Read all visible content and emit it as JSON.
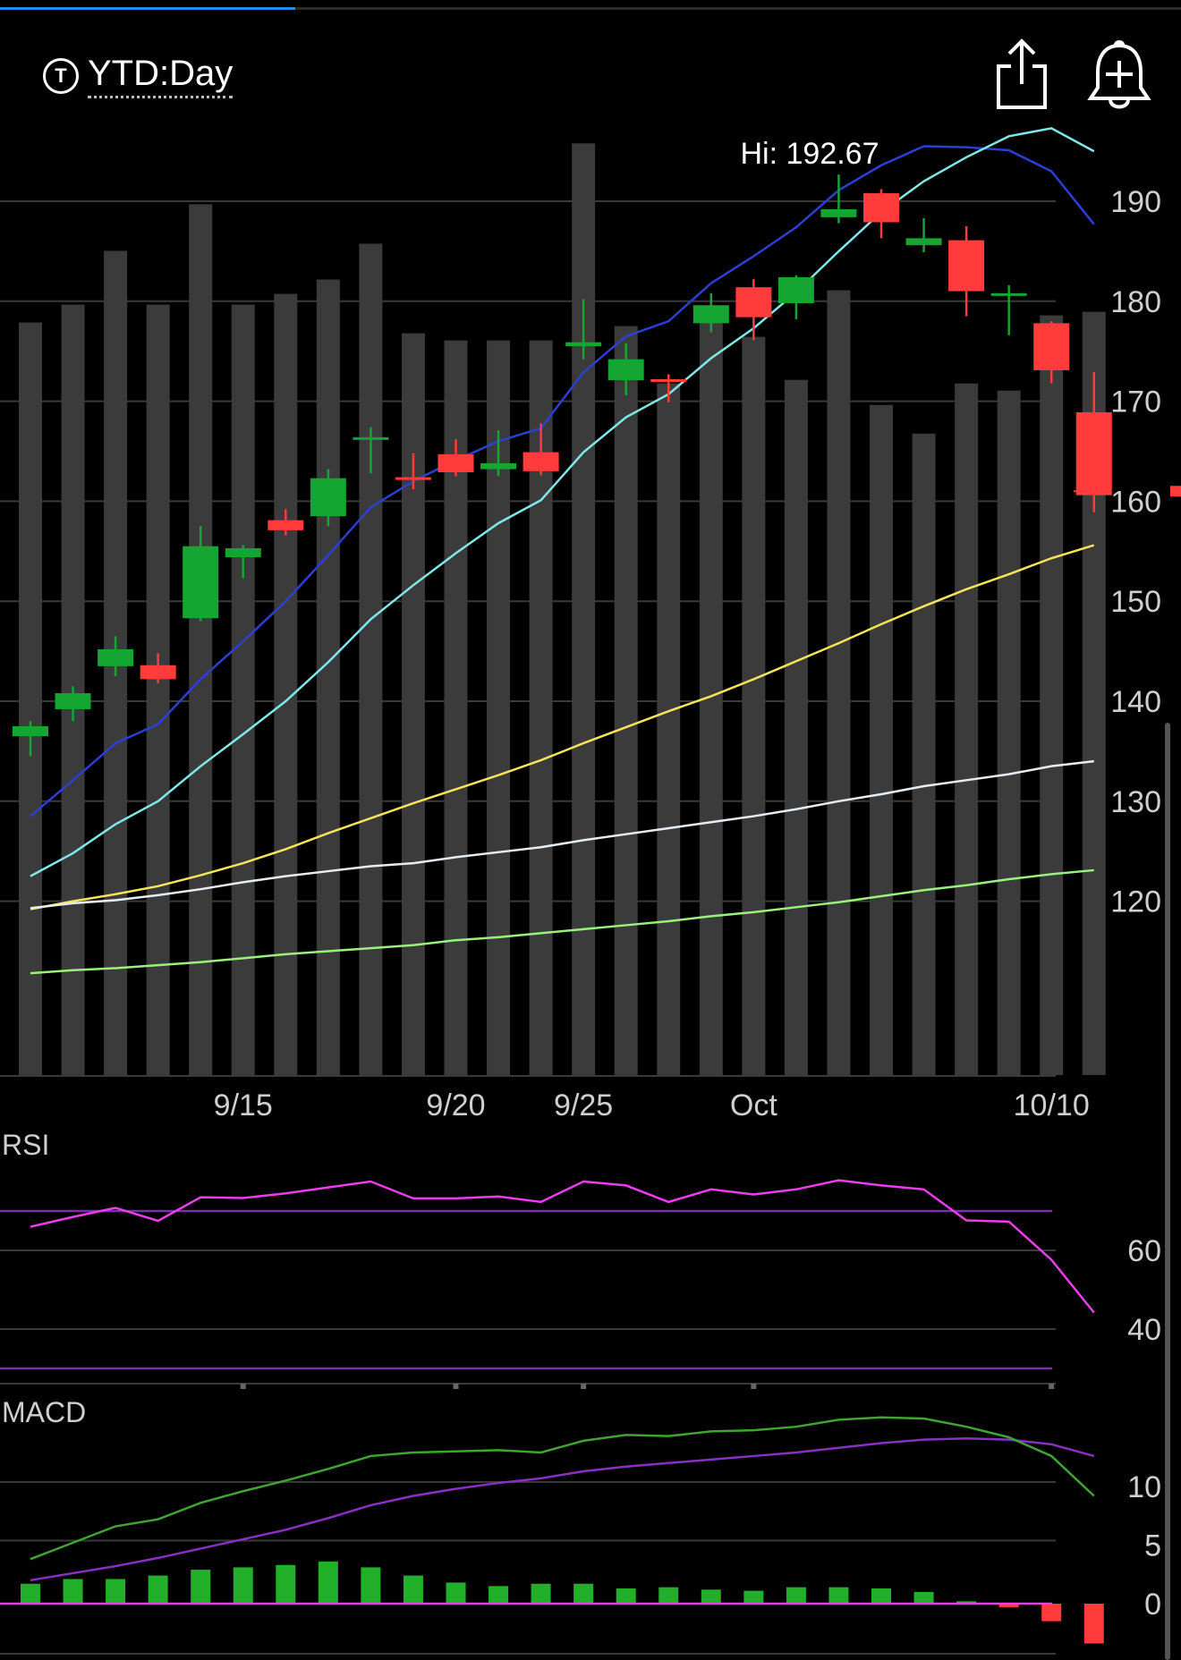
{
  "toolbar": {
    "range_icon_glyph": "T",
    "range_label": "YTD:Day",
    "share_icon": "share-icon",
    "alert_icon": "add-alert-bell-icon"
  },
  "progress": {
    "fraction": 0.25
  },
  "chart_data": [
    {
      "type": "candlestick",
      "panel": "price",
      "annotations": {
        "high_label": "Hi: 192.67",
        "last_price": 161
      },
      "y_ticks": [
        190,
        180,
        170,
        160,
        150,
        140,
        130,
        120
      ],
      "x_labels": [
        {
          "at": 5,
          "text": "9/15"
        },
        {
          "at": 10,
          "text": "9/20"
        },
        {
          "at": 13,
          "text": "9/25"
        },
        {
          "at": 17,
          "text": "Oct"
        },
        {
          "at": 24,
          "text": "10/10"
        }
      ],
      "candles": [
        {
          "o": 136.5,
          "h": 138,
          "l": 134.5,
          "c": 137.5
        },
        {
          "o": 139.2,
          "h": 141.5,
          "l": 138,
          "c": 140.8
        },
        {
          "o": 143.5,
          "h": 146.5,
          "l": 142.5,
          "c": 145.2
        },
        {
          "o": 143.6,
          "h": 144.8,
          "l": 141.8,
          "c": 142.2
        },
        {
          "o": 148.3,
          "h": 157.5,
          "l": 148,
          "c": 155.5
        },
        {
          "o": 154.4,
          "h": 155.6,
          "l": 152.3,
          "c": 155.3
        },
        {
          "o": 158.1,
          "h": 159.2,
          "l": 156.6,
          "c": 157.1
        },
        {
          "o": 158.5,
          "h": 163.2,
          "l": 157.5,
          "c": 162.3
        },
        {
          "o": 166.2,
          "h": 167.4,
          "l": 162.8,
          "c": 166.4
        },
        {
          "o": 162.4,
          "h": 164.8,
          "l": 161.2,
          "c": 162.2
        },
        {
          "o": 164.7,
          "h": 166.2,
          "l": 162.5,
          "c": 162.9
        },
        {
          "o": 163.2,
          "h": 167.1,
          "l": 162.5,
          "c": 163.8
        },
        {
          "o": 164.9,
          "h": 167.8,
          "l": 162.6,
          "c": 163.0
        },
        {
          "o": 175.5,
          "h": 180.2,
          "l": 174.2,
          "c": 175.9
        },
        {
          "o": 172.1,
          "h": 175.8,
          "l": 170.6,
          "c": 174.2
        },
        {
          "o": 172.2,
          "h": 172.7,
          "l": 169.9,
          "c": 172.1
        },
        {
          "o": 177.8,
          "h": 180.8,
          "l": 176.9,
          "c": 179.6
        },
        {
          "o": 181.4,
          "h": 182.2,
          "l": 176.1,
          "c": 178.4
        },
        {
          "o": 179.8,
          "h": 182.6,
          "l": 178.2,
          "c": 182.4
        },
        {
          "o": 188.4,
          "h": 192.67,
          "l": 187.8,
          "c": 189.2
        },
        {
          "o": 190.8,
          "h": 191.2,
          "l": 186.3,
          "c": 187.9
        },
        {
          "o": 185.6,
          "h": 188.3,
          "l": 184.9,
          "c": 186.3
        },
        {
          "o": 186.1,
          "h": 187.5,
          "l": 178.5,
          "c": 181.0
        },
        {
          "o": 180.6,
          "h": 181.6,
          "l": 176.6,
          "c": 180.8
        },
        {
          "o": 177.8,
          "h": 178.0,
          "l": 171.8,
          "c": 173.1
        },
        {
          "o": 168.9,
          "h": 172.9,
          "l": 158.9,
          "c": 160.6
        }
      ],
      "volume": [
        210,
        215,
        230,
        215,
        243,
        215,
        218,
        222,
        232,
        207,
        205,
        205,
        205,
        260,
        209,
        193,
        212,
        206,
        194,
        219,
        187,
        179,
        193,
        191,
        212,
        213
      ],
      "volume_scale_max": 300,
      "moving_averages": [
        {
          "color": "#2b3fd4",
          "values": [
            128.5,
            132.1,
            135.8,
            137.7,
            142.2,
            146.0,
            150.0,
            154.6,
            159.4,
            162.0,
            164.1,
            166.0,
            167.3,
            172.9,
            176.5,
            178.0,
            181.8,
            184.5,
            187.4,
            191.1,
            193.6,
            195.5,
            195.4,
            195.1,
            193.0,
            187.7
          ]
        },
        {
          "color": "#7ee8e8",
          "values": [
            122.5,
            124.8,
            127.7,
            130.0,
            133.5,
            136.7,
            140.0,
            143.9,
            148.2,
            151.6,
            154.8,
            157.8,
            160.1,
            164.9,
            168.4,
            170.7,
            174.3,
            177.3,
            180.9,
            185.0,
            188.9,
            192.0,
            194.4,
            196.5,
            197.3,
            195.0
          ]
        },
        {
          "color": "#f4e45a",
          "values": [
            119.2,
            120.0,
            120.7,
            121.5,
            122.6,
            123.8,
            125.2,
            126.8,
            128.3,
            129.8,
            131.2,
            132.6,
            134.1,
            135.8,
            137.4,
            139.0,
            140.5,
            142.2,
            144.0,
            145.8,
            147.7,
            149.5,
            151.2,
            152.7,
            154.3,
            155.6
          ]
        },
        {
          "color": "#e6edf2",
          "values": [
            119.3,
            119.8,
            120.1,
            120.6,
            121.2,
            121.9,
            122.5,
            123.0,
            123.5,
            123.8,
            124.4,
            124.9,
            125.4,
            126.1,
            126.7,
            127.3,
            127.9,
            128.5,
            129.2,
            130.0,
            130.7,
            131.5,
            132.1,
            132.7,
            133.5,
            134.0
          ]
        },
        {
          "color": "#9af07e",
          "values": [
            112.8,
            113.1,
            113.3,
            113.6,
            113.9,
            114.3,
            114.7,
            115.0,
            115.3,
            115.6,
            116.1,
            116.4,
            116.8,
            117.2,
            117.6,
            118.0,
            118.5,
            118.9,
            119.4,
            119.9,
            120.5,
            121.1,
            121.6,
            122.2,
            122.7,
            123.1
          ]
        }
      ]
    },
    {
      "type": "line",
      "panel": "rsi",
      "label": "RSI",
      "y_ticks": [
        60,
        40
      ],
      "reference_lines": [
        70,
        30
      ],
      "values": [
        66,
        68.5,
        70.8,
        67.5,
        73.5,
        73.3,
        74.5,
        76,
        77.5,
        73.2,
        73.2,
        73.7,
        72.3,
        77.5,
        76.5,
        72.3,
        75.5,
        74.2,
        75.5,
        77.8,
        76.5,
        75.5,
        67.6,
        67.3,
        57.6,
        44.2
      ],
      "color": "#ec3cec"
    },
    {
      "type": "macd",
      "panel": "macd",
      "label": "MACD",
      "y_ticks": [
        10,
        5,
        0
      ],
      "macd_line": [
        3.8,
        5.2,
        6.6,
        7.2,
        8.6,
        9.6,
        10.5,
        11.5,
        12.6,
        12.9,
        13.0,
        13.1,
        12.9,
        13.9,
        14.4,
        14.3,
        14.7,
        14.8,
        15.1,
        15.7,
        15.9,
        15.8,
        15.1,
        14.2,
        12.6,
        9.2
      ],
      "signal_line": [
        2.0,
        2.6,
        3.2,
        3.9,
        4.7,
        5.5,
        6.3,
        7.3,
        8.4,
        9.2,
        9.8,
        10.3,
        10.7,
        11.3,
        11.7,
        12.0,
        12.3,
        12.6,
        12.9,
        13.3,
        13.7,
        14.0,
        14.1,
        14.0,
        13.6,
        12.6
      ],
      "histogram": [
        1.7,
        2.1,
        2.1,
        2.4,
        2.9,
        3.1,
        3.3,
        3.6,
        3.1,
        2.4,
        1.8,
        1.5,
        1.7,
        1.7,
        1.3,
        1.4,
        1.2,
        1.1,
        1.4,
        1.4,
        1.3,
        1.0,
        0.2,
        -0.3,
        -1.5,
        -3.4
      ],
      "macd_color": "#3fa530",
      "signal_color": "#8a2fc4",
      "zero_color": "#ec3cec",
      "up_color": "#22b02a",
      "down_color": "#ff3b3b"
    }
  ]
}
